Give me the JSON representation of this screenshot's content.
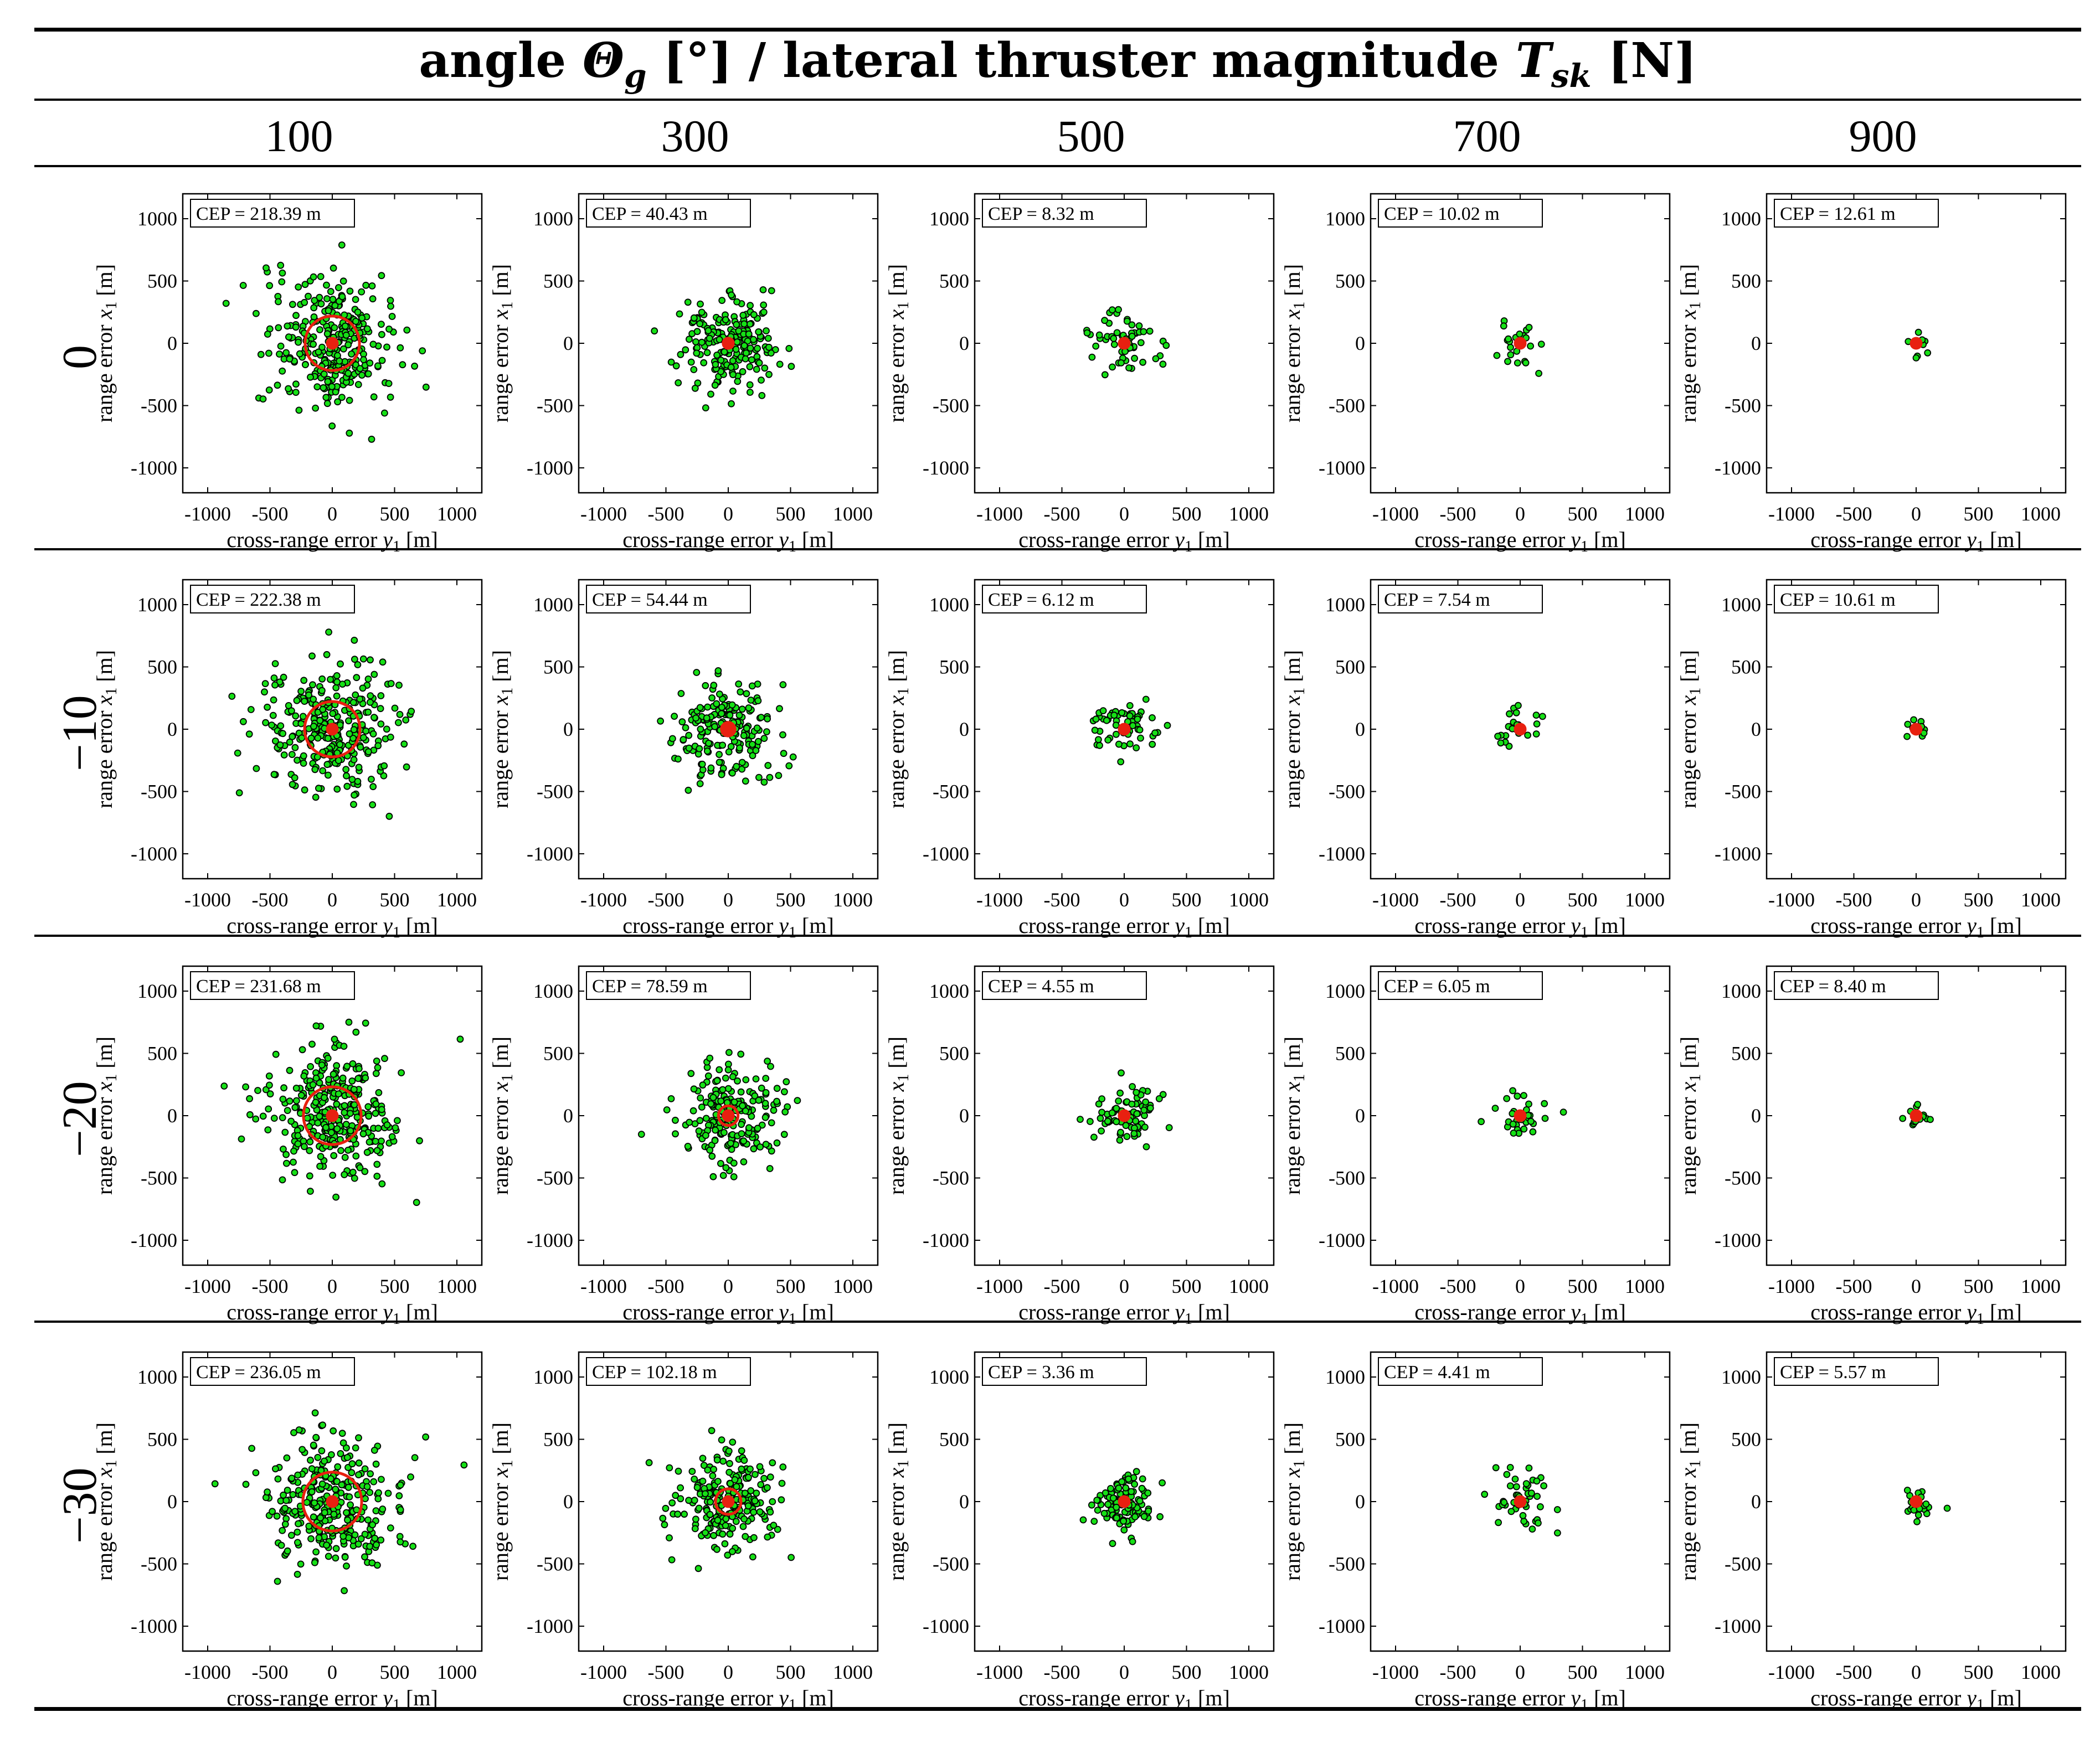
{
  "figure": {
    "title_prefix": "angle ",
    "title_theta": "Θ",
    "title_theta_sub": "g",
    "title_middle": " [°] / lateral thruster magnitude ",
    "title_T": "T",
    "title_T_sub": "sk",
    "title_suffix": " [N]"
  },
  "columns": [
    "100",
    "300",
    "500",
    "700",
    "900"
  ],
  "rows": [
    "0",
    "−10",
    "−20",
    "−30"
  ],
  "colors": {
    "point_fill": "#16e016",
    "point_edge": "#000000",
    "cep_circle": "#e82010",
    "center": "#e82010"
  },
  "chart_data": {
    "type": "scatter",
    "description_axes": {
      "xlabel": "cross-range error y1 [m]",
      "ylabel": "range error x1 [m]"
    },
    "xlabel_text": "cross-range error ",
    "xlabel_var": "y",
    "xlabel_sub": "1",
    "xlabel_unit": " [m]",
    "ylabel_text": "range error ",
    "ylabel_var": "x",
    "ylabel_sub": "1",
    "ylabel_unit": " [m]",
    "xlim": [
      -1200,
      1200
    ],
    "ylim": [
      -1200,
      1200
    ],
    "xticks": [
      "-1000",
      "-500",
      "0",
      "500",
      "1000"
    ],
    "yticks": [
      "1000",
      "500",
      "0",
      "-500",
      "-1000"
    ],
    "cep_prefix": "CEP = ",
    "cep_unit": " m",
    "spreads": [
      [
        260,
        190,
        130,
        95,
        55
      ],
      [
        262,
        195,
        130,
        95,
        55
      ],
      [
        268,
        200,
        125,
        100,
        62
      ],
      [
        272,
        208,
        120,
        115,
        80
      ]
    ],
    "cep": [
      [
        "218.39",
        "40.43",
        "8.32",
        "10.02",
        "12.61"
      ],
      [
        "222.38",
        "54.44",
        "6.12",
        "7.54",
        "10.61"
      ],
      [
        "231.68",
        "78.59",
        "4.55",
        "6.05",
        "8.40"
      ],
      [
        "236.05",
        "102.18",
        "3.36",
        "4.41",
        "5.57"
      ]
    ],
    "point_counts": [
      [
        300,
        200,
        60,
        22,
        10
      ],
      [
        300,
        200,
        60,
        22,
        10
      ],
      [
        300,
        200,
        80,
        30,
        14
      ],
      [
        300,
        230,
        110,
        45,
        20
      ]
    ]
  }
}
